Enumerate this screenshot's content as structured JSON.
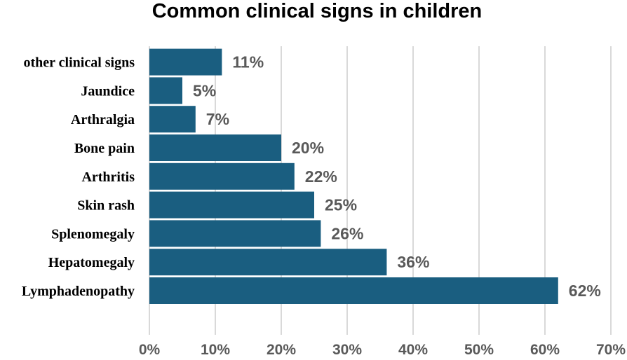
{
  "chart_data": {
    "type": "bar",
    "orientation": "horizontal",
    "title": "Common clinical signs in children",
    "xlabel": "",
    "ylabel": "",
    "categories": [
      "Lymphadenopathy",
      "Hepatomegaly",
      "Splenomegaly",
      "Skin rash",
      "Arthritis",
      "Bone pain",
      "Arthralgia",
      "Jaundice",
      "other clinical signs"
    ],
    "values": [
      62,
      36,
      26,
      25,
      22,
      20,
      7,
      5,
      11
    ],
    "data_labels": [
      "62%",
      "36%",
      "26%",
      "25%",
      "22%",
      "20%",
      "7%",
      "5%",
      "11%"
    ],
    "xlim": [
      0,
      70
    ],
    "x_ticks": [
      0,
      10,
      20,
      30,
      40,
      50,
      60,
      70
    ],
    "x_tick_labels": [
      "0%",
      "10%",
      "20%",
      "30%",
      "40%",
      "50%",
      "60%",
      "70%"
    ],
    "grid": "vertical",
    "legend": "none",
    "bar_color": "#1a5e80"
  }
}
